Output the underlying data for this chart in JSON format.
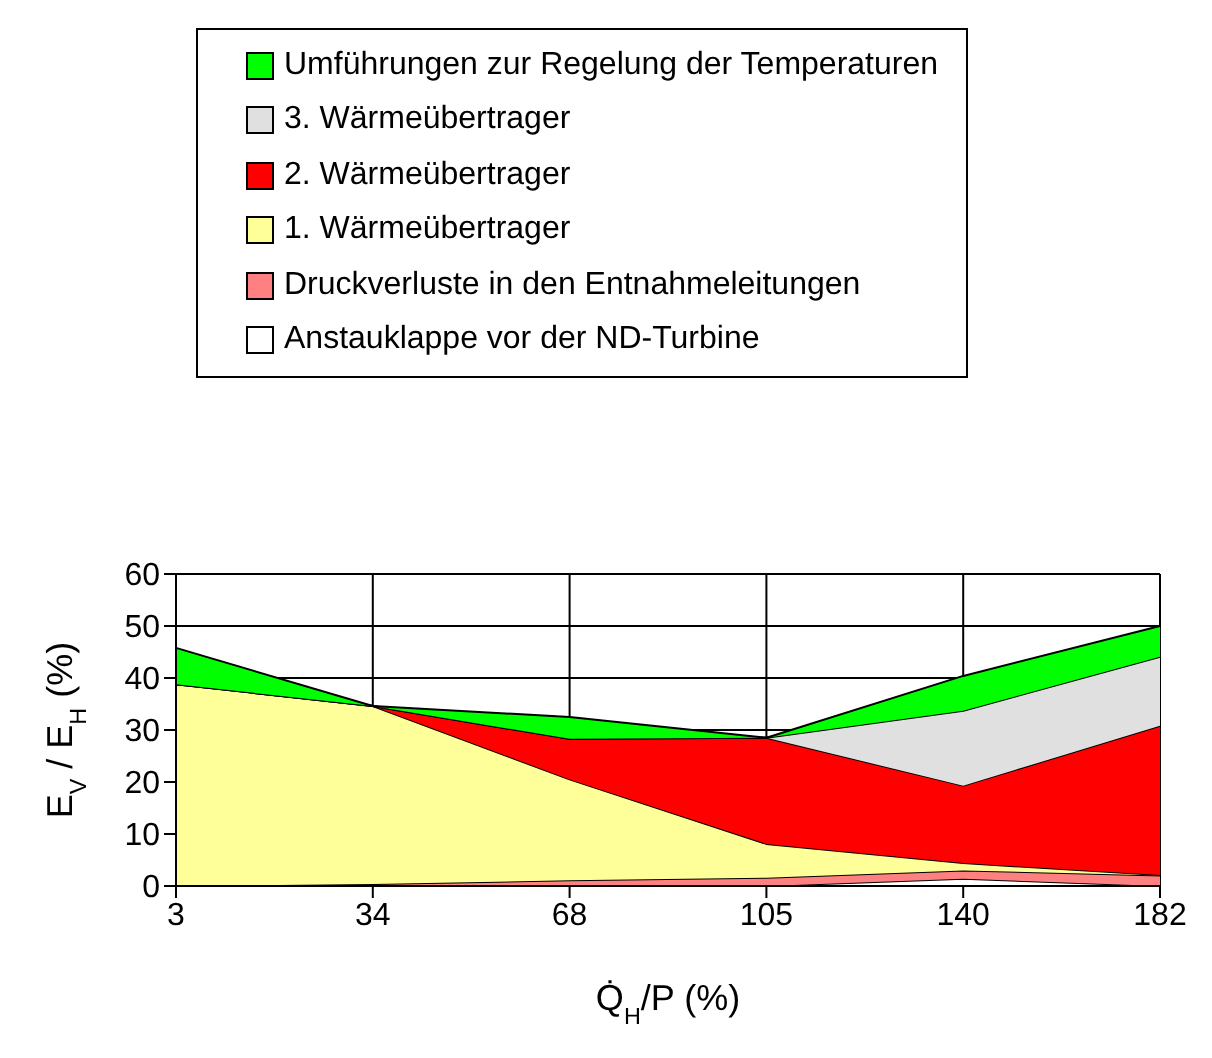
{
  "chart_data": {
    "type": "area",
    "stacked": true,
    "xlabel": "Q̇$_{H}$/P (%)",
    "ylabel": "E$_{V}$ / E$_{H}$ (%)",
    "categories": [
      "3",
      "34",
      "68",
      "105",
      "140",
      "182"
    ],
    "ylim": [
      0,
      60
    ],
    "yticks": [
      0,
      10,
      20,
      30,
      40,
      50,
      60
    ],
    "grid": true,
    "legend": "top",
    "series": [
      {
        "name": "Anstauklappe vor der ND-Turbine",
        "color": "#ffffff",
        "values": [
          0,
          0,
          0,
          0,
          1.4,
          0
        ]
      },
      {
        "name": "Druckverluste in den Entnahmeleitungen",
        "color": "#ff8080",
        "values": [
          0,
          0.4,
          1.1,
          1.6,
          1.6,
          2.0
        ]
      },
      {
        "name": "1. Wärmeübertrager",
        "color": "#ffff99",
        "values": [
          38.8,
          34.2,
          19.4,
          6.5,
          1.4,
          0.1
        ]
      },
      {
        "name": "2. Wärmeübertrager",
        "color": "#ff0000",
        "values": [
          0,
          0,
          7.8,
          20.4,
          14.9,
          28.7
        ]
      },
      {
        "name": "3. Wärmeübertrager",
        "color": "#e0e0e0",
        "values": [
          0,
          0,
          0,
          0,
          14.4,
          13.3
        ]
      },
      {
        "name": "Umführungen zur Regelung der Temperaturen",
        "color": "#00ff00",
        "values": [
          7.0,
          0,
          4.2,
          0,
          6.7,
          5.9
        ]
      }
    ]
  }
}
